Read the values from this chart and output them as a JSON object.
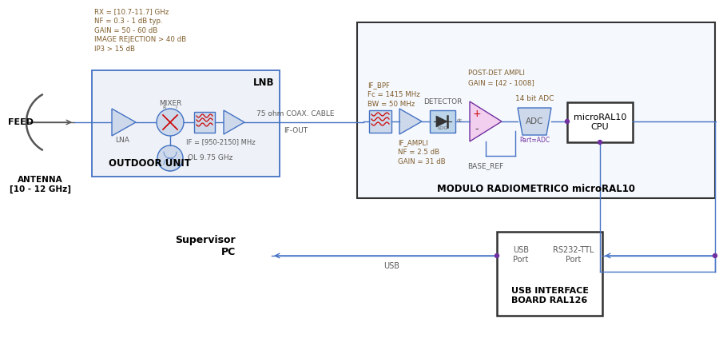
{
  "bg_color": "#ffffff",
  "line_color": "#4472c4",
  "block_fill_light": "#cdd9ea",
  "block_fill_pink": "#f2ceef",
  "block_fill_white": "#ffffff",
  "block_edge": "#4472c4",
  "text_dark": "#595959",
  "text_brown": "#7f5c2a",
  "text_purple": "#7030a0",
  "antenna_text": "ANTENNA\n[10 - 12 GHz]",
  "feed_text": "FEED",
  "lnb_specs": "RX = [10.7-11.7] GHz\nNF = 0.3 - 1 dB typ.\nGAIN = 50 - 60 dB\nIMAGE REJECTION > 40 dB\nIP3 > 15 dB",
  "lnb_label": "LNB",
  "outdoor_unit_label": "OUTDOOR UNIT",
  "mixer_label": "MIXER",
  "lna_label": "LNA",
  "if_label": "IF = [950-2150] MHz",
  "ol_label": "OL 9.75 GHz",
  "cable_label": "75 ohm COAX. CABLE",
  "if_out_label": "IF-OUT",
  "modulo_label": "MODULO RADIOMETRICO microRAL10",
  "if_bpf_specs": "IF_BPF\nFc = 1415 MHz\nBW = 50 MHz",
  "detector_label": "DETECTOR",
  "if_ampli_specs": "IF_AMPLI\nNF = 2.5 dB\nGAIN = 31 dB",
  "post_det_specs": "POST-DET AMPLI\nGAIN = [42 - 1008]",
  "adc_label": "14 bit ADC",
  "adc_sub_label": "Part=ADC",
  "base_ref_label": "BASE_REF",
  "cpu_label": "microRAL10\nCPU",
  "usb_board_label": "USB INTERFACE\nBOARD RAL126",
  "usb_port_label": "USB\nPort",
  "rs232_label": "RS232-TTL\nPort",
  "supervisor_label": "Supervisor\nPC",
  "usb_line_label": "USB"
}
